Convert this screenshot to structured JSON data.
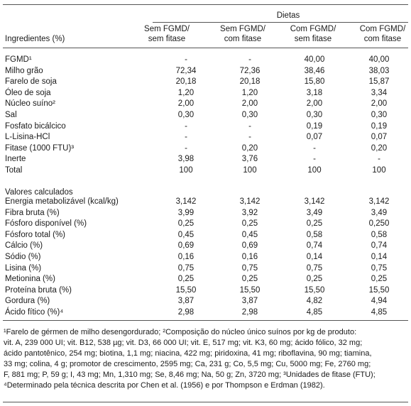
{
  "header": {
    "group_label": "Dietas",
    "ingredients_label": "Ingredientes  (%)",
    "columns": [
      {
        "line1": "Sem FGMD/",
        "line2": "sem fitase"
      },
      {
        "line1": "Sem FGMD/",
        "line2": "com  fitase"
      },
      {
        "line1": "Com FGMD/",
        "line2": "sem fitase"
      },
      {
        "line1": "Com FGMD/",
        "line2": "com fitase"
      }
    ]
  },
  "ingredients": [
    {
      "name": "FGMD¹",
      "values": [
        "-",
        "-",
        "40,00",
        "40,00"
      ]
    },
    {
      "name": "Milho grão",
      "values": [
        "72,34",
        "72,36",
        "38,46",
        "38,03"
      ]
    },
    {
      "name": "Farelo de soja",
      "values": [
        "20,18",
        "20,18",
        "15,80",
        "15,87"
      ]
    },
    {
      "name": "Óleo de soja",
      "values": [
        "1,20",
        "1,20",
        "3,18",
        "3,34"
      ]
    },
    {
      "name": "Núcleo suíno²",
      "values": [
        "2,00",
        "2,00",
        "2,00",
        "2,00"
      ]
    },
    {
      "name": "Sal",
      "values": [
        "0,30",
        "0,30",
        "0,30",
        "0,30"
      ]
    },
    {
      "name": "Fosfato  bicálcico",
      "values": [
        "-",
        "-",
        "0,19",
        "0,19"
      ]
    },
    {
      "name": "L-Lisina-HCl",
      "values": [
        "-",
        "-",
        "0,07",
        "0,07"
      ]
    },
    {
      "name": "Fitase (1000 FTU)³",
      "values": [
        "-",
        "0,20",
        "-",
        "0,20"
      ]
    },
    {
      "name": "Inerte",
      "values": [
        "3,98",
        "3,76",
        "-",
        "-"
      ]
    },
    {
      "name": "Total",
      "values": [
        "100",
        "100",
        "100",
        "100"
      ]
    }
  ],
  "calculated_title": "Valores  calculados",
  "calculated": [
    {
      "name": "Energia metabolizável (kcal/kg)",
      "values": [
        "3,142",
        "3,142",
        "3,142",
        "3,142"
      ]
    },
    {
      "name": "Fibra bruta (%)",
      "values": [
        "3,99",
        "3,92",
        "3,49",
        "3,49"
      ]
    },
    {
      "name": "Fósforo  disponível (%)",
      "values": [
        "0,25",
        "0,25",
        "0,25",
        "0,250"
      ]
    },
    {
      "name": "Fósforo  total  (%)",
      "values": [
        "0,45",
        "0,45",
        "0,58",
        "0,58"
      ]
    },
    {
      "name": "Cálcio  (%)",
      "values": [
        "0,69",
        "0,69",
        "0,74",
        "0,74"
      ]
    },
    {
      "name": "Sódio  (%)",
      "values": [
        "0,16",
        "0,16",
        "0,14",
        "0,14"
      ]
    },
    {
      "name": "Lisina  (%)",
      "values": [
        "0,75",
        "0,75",
        "0,75",
        "0,75"
      ]
    },
    {
      "name": "Metionina  (%)",
      "values": [
        "0,25",
        "0,25",
        "0,25",
        "0,25"
      ]
    },
    {
      "name": "Proteína bruta (%)",
      "values": [
        "15,50",
        "15,50",
        "15,50",
        "15,50"
      ]
    },
    {
      "name": "Gordura  (%)",
      "values": [
        "3,87",
        "3,87",
        "4,82",
        "4,94"
      ]
    },
    {
      "name": "Ácido  fítico  (%)⁴",
      "values": [
        "2,98",
        "2,98",
        "4,85",
        "4,85"
      ]
    }
  ],
  "footnotes": [
    "¹Farelo de gérmen de milho desengordurado; ²Composição do núcleo único suínos por kg de produto:",
    "vit. A, 239 000 UI; vit. B12, 538 µg; vit. D3, 66 000 UI; vit. E, 517 mg; vit. K3, 60 mg; ácido fólico, 32 mg;",
    "ácido pantotênico, 254 mg; biotina, 1,1 mg; niacina, 422 mg; piridoxina, 41 mg; riboflavina, 90 mg; tiamina,",
    "33 mg; colina, 4 g; promotor de crescimento, 2595 mg; Ca, 231 g; Co, 5,5 mg; Cu, 5000 mg; Fe, 2760 mg;",
    "F, 881 mg; P, 59 g; I, 43 mg; Mn, 1,310 mg; Se, 8,46 mg; Na, 50 g; Zn, 3720 mg; ³Unidades de fitase (FTU);",
    "⁴Determinado pela técnica descrita por Chen et al. (1956) e por Thompson e Erdman (1982)."
  ]
}
